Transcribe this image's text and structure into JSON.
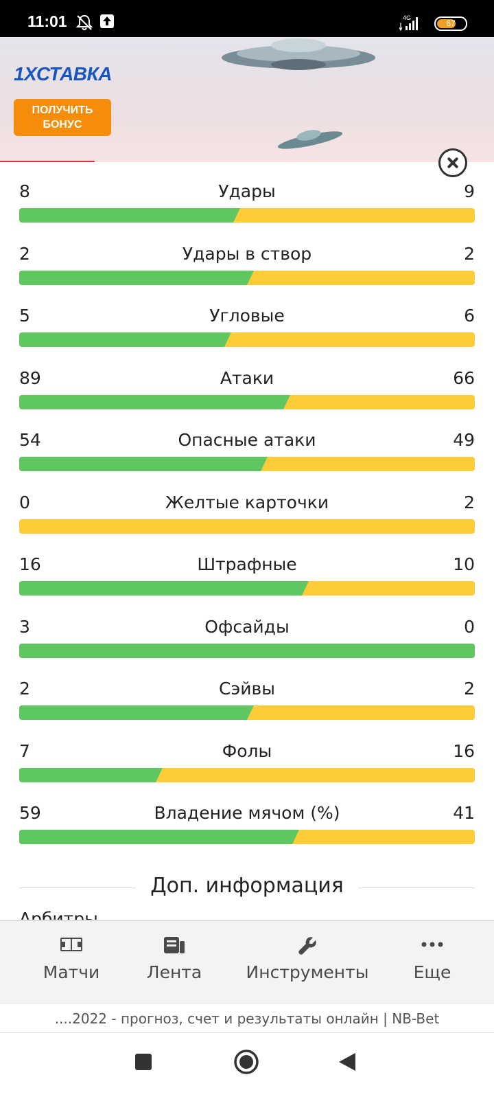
{
  "status_bar": {
    "time": "11:01",
    "network": "4G",
    "battery_level": "67",
    "battery_fraction": 0.67,
    "icons": [
      "bell-off-icon",
      "upload-icon",
      "signal-icon",
      "battery-icon"
    ]
  },
  "ad": {
    "brand": "1ХСТАВКА",
    "cta_line1": "ПОЛУЧИТЬ",
    "cta_line2": "БОНУС",
    "brand_color": "#1656c0",
    "cta_color": "#f58d0a"
  },
  "stats": {
    "colors": {
      "home": "#5fc762",
      "away": "#fecb39"
    },
    "items": [
      {
        "label": "Удары",
        "home": "8",
        "away": "9",
        "home_share": 0.47
      },
      {
        "label": "Удары в створ",
        "home": "2",
        "away": "2",
        "home_share": 0.5
      },
      {
        "label": "Угловые",
        "home": "5",
        "away": "6",
        "home_share": 0.45
      },
      {
        "label": "Атаки",
        "home": "89",
        "away": "66",
        "home_share": 0.58
      },
      {
        "label": "Опасные атаки",
        "home": "54",
        "away": "49",
        "home_share": 0.53
      },
      {
        "label": "Желтые карточки",
        "home": "0",
        "away": "2",
        "home_share": 0
      },
      {
        "label": "Штрафные",
        "home": "16",
        "away": "10",
        "home_share": 0.62
      },
      {
        "label": "Офсайды",
        "home": "3",
        "away": "0",
        "home_share": 1
      },
      {
        "label": "Сэйвы",
        "home": "2",
        "away": "2",
        "home_share": 0.5
      },
      {
        "label": "Фолы",
        "home": "7",
        "away": "16",
        "home_share": 0.3
      },
      {
        "label": "Владение мячом (%)",
        "home": "59",
        "away": "41",
        "home_share": 0.6
      }
    ]
  },
  "extra_info": {
    "title": "Доп. информация",
    "partial_text": "Арбитры..."
  },
  "bottom_nav": {
    "items": [
      {
        "label": "Матчи",
        "icon": "field-icon"
      },
      {
        "label": "Лента",
        "icon": "news-icon"
      },
      {
        "label": "Инструменты",
        "icon": "wrench-icon"
      },
      {
        "label": "Еще",
        "icon": "more-icon"
      }
    ]
  },
  "page_title": "....2022 - прогноз, счет и результаты онлайн | NB-Bet",
  "android_nav": [
    "recent-apps-icon",
    "home-icon",
    "back-icon"
  ]
}
